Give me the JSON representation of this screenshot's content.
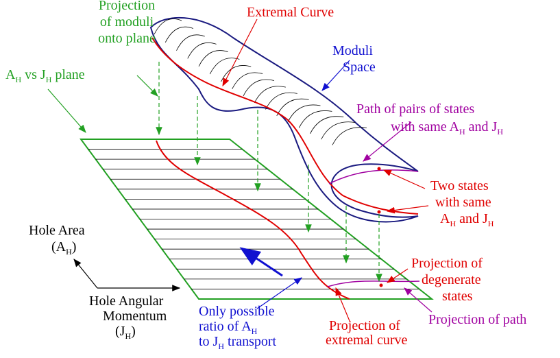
{
  "labels": [
    {
      "lines": [
        [
          "Extremal Curve"
        ]
      ]
    },
    {
      "lines": [
        [
          "Projection"
        ],
        [
          "of moduli"
        ],
        [
          "onto plane"
        ]
      ]
    },
    {
      "lines": [
        [
          "Moduli"
        ],
        [
          "Space"
        ]
      ]
    },
    {
      "lines": [
        [
          "A",
          "H",
          " vs  J",
          "H",
          " plane"
        ]
      ]
    },
    {
      "lines": [
        [
          "Path of pairs of states"
        ],
        [
          "with same A",
          "H",
          " and J",
          "H"
        ]
      ]
    },
    {
      "lines": [
        [
          "Two states"
        ],
        [
          "with same"
        ],
        [
          "A",
          "H",
          " and J",
          "H"
        ]
      ]
    },
    {
      "lines": [
        [
          "Hole Area"
        ],
        [
          "(A",
          "H",
          ")"
        ]
      ]
    },
    {
      "lines": [
        [
          "Hole Angular"
        ],
        [
          "Momentum"
        ],
        [
          "(J",
          "H",
          ")"
        ]
      ]
    },
    {
      "lines": [
        [
          "Only possible"
        ],
        [
          "ratio of A",
          "H"
        ],
        [
          "to J",
          "H",
          " transport"
        ]
      ]
    },
    {
      "lines": [
        [
          "Projection of"
        ],
        [
          "extremal curve"
        ]
      ]
    },
    {
      "lines": [
        [
          "Projection of"
        ],
        [
          "degenerate"
        ],
        [
          "states"
        ]
      ]
    },
    {
      "lines": [
        [
          "Projection of path"
        ]
      ]
    }
  ]
}
